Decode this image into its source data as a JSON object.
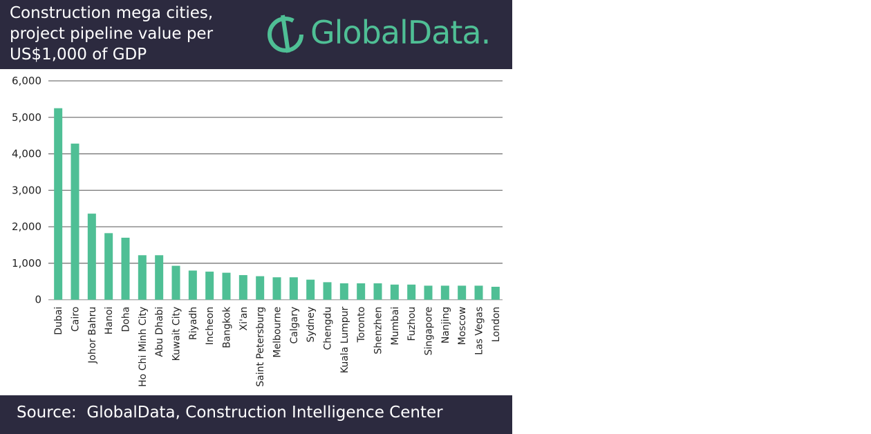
{
  "header": {
    "title": "Construction mega cities, project pipeline value per US$1,000 of GDP",
    "logo_text": "GlobalData."
  },
  "footer": {
    "source": "Source:  GlobalData, Construction Intelligence Center"
  },
  "colors": {
    "bar": "#4fbf95",
    "background_bands": "#2c2a3f"
  },
  "chart_data": {
    "type": "bar",
    "title": "Construction mega cities, project pipeline value per US$1,000 of GDP",
    "xlabel": "",
    "ylabel": "",
    "ylim": [
      0,
      6000
    ],
    "yticks": [
      "0",
      "1,000",
      "2,000",
      "3,000",
      "4,000",
      "5,000",
      "6,000"
    ],
    "grid": true,
    "categories": [
      "Dubai",
      "Cairo",
      "Johor Bahru",
      "Hanoi",
      "Doha",
      "Ho Chi Minh City",
      "Abu Dhabi",
      "Kuwait City",
      "Riyadh",
      "Incheon",
      "Bangkok",
      "Xi'an",
      "Saint Petersburg",
      "Melbourne",
      "Calgary",
      "Sydney",
      "Chengdu",
      "Kuala Lumpur",
      "Toronto",
      "Shenzhen",
      "Mumbai",
      "Fuzhou",
      "Singapore",
      "Nanjing",
      "Moscow",
      "Las Vegas",
      "London"
    ],
    "values": [
      5250,
      4280,
      2360,
      1825,
      1700,
      1220,
      1220,
      930,
      800,
      770,
      740,
      675,
      645,
      615,
      615,
      550,
      480,
      450,
      450,
      450,
      415,
      415,
      385,
      385,
      385,
      385,
      355
    ]
  }
}
